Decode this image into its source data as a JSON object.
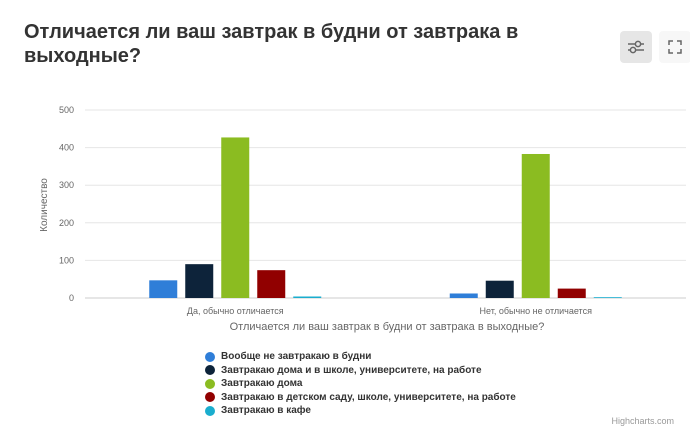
{
  "title": "Отличается ли ваш завтрак в будни от завтрака в выходные?",
  "toolbar": {
    "settings_icon": "sliders-icon",
    "fullscreen_icon": "fullscreen-icon"
  },
  "credits": "Highcharts.com",
  "colors": [
    "#2f7ed8",
    "#0d233a",
    "#8bbc21",
    "#910000",
    "#1aadce"
  ],
  "chart_data": {
    "type": "bar",
    "categories": [
      "Да, обычно отличается",
      "Нет, обычно не отличается"
    ],
    "series": [
      {
        "name": "Вообще не завтракаю в будни",
        "values": [
          47,
          12
        ]
      },
      {
        "name": "Завтракаю дома и в школе, университете, на работе",
        "values": [
          90,
          46
        ]
      },
      {
        "name": "Завтракаю дома",
        "values": [
          427,
          383
        ]
      },
      {
        "name": "Завтракаю в детском саду, школе, университете, на работе",
        "values": [
          74,
          25
        ]
      },
      {
        "name": "Завтракаю в кафе",
        "values": [
          4,
          1
        ]
      }
    ],
    "xlabel": "Отличается ли ваш завтрак в будни от завтрака в выходные?",
    "ylabel": "Количество",
    "ylim": [
      0,
      500
    ],
    "yticks": [
      "0",
      "100",
      "200",
      "300",
      "400",
      "500"
    ],
    "grid": true,
    "legend_position": "bottom"
  }
}
